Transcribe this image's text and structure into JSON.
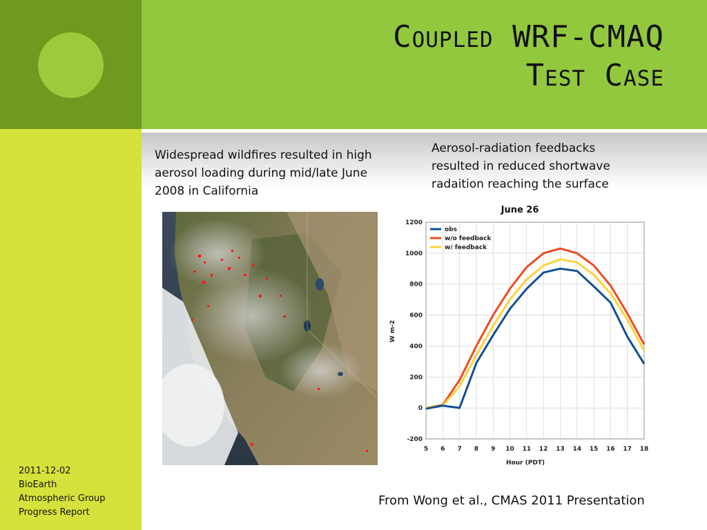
{
  "slide": {
    "title_line1": "Coupled WRF-CMAQ",
    "title_line2": "Test Case",
    "left_caption": "Widespread wildfires resulted in high aerosol loading during mid/late June 2008 in California",
    "right_caption": "Aerosol-radiation feedbacks resulted in reduced shortwave radaition reaching the surface",
    "credit": "From Wong et al., CMAS 2011 Presentation"
  },
  "footer": {
    "date": "2011-12-02",
    "line2": "BioEarth",
    "line3": "Atmospheric Group",
    "line4": "Progress Report"
  },
  "colors": {
    "obs": "#0e4f94",
    "wo_feedback": "#ee4b22",
    "w_feedback": "#fbd43a",
    "dark_green": "#6e9a1f",
    "light_green": "#92c83e",
    "yellow_green": "#d4e23b"
  },
  "chart_data": {
    "type": "line",
    "title": "June 26",
    "xlabel": "Hour (PDT)",
    "ylabel": "W m-2",
    "x": [
      5,
      6,
      7,
      8,
      9,
      10,
      11,
      12,
      13,
      14,
      15,
      16,
      17,
      18
    ],
    "xlim": [
      5,
      18
    ],
    "ylim": [
      -200,
      1200
    ],
    "yticks": [
      -200,
      0,
      200,
      400,
      600,
      800,
      1000,
      1200
    ],
    "grid": true,
    "legend_position": "top-left",
    "series": [
      {
        "name": "obs",
        "color": "#0e4f94",
        "values": [
          -5,
          15,
          0,
          290,
          470,
          640,
          770,
          875,
          900,
          885,
          785,
          680,
          460,
          285
        ]
      },
      {
        "name": "w/o feedback",
        "color": "#ee4b22",
        "values": [
          0,
          20,
          180,
          400,
          600,
          770,
          910,
          1000,
          1030,
          1000,
          920,
          790,
          610,
          410
        ]
      },
      {
        "name": "w/ feedback",
        "color": "#fbd43a",
        "values": [
          0,
          15,
          140,
          340,
          530,
          700,
          830,
          920,
          960,
          940,
          860,
          740,
          570,
          370
        ]
      }
    ]
  }
}
